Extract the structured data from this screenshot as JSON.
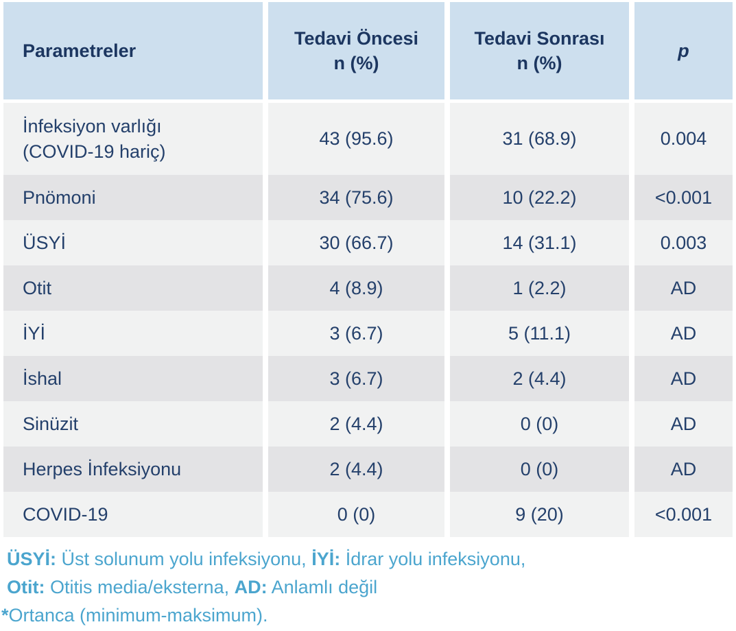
{
  "chart_data": {
    "type": "table",
    "title": "",
    "columns": [
      "Parametreler",
      "Tedavi Öncesi n (%)",
      "Tedavi Sonrası n (%)",
      "p"
    ],
    "rows": [
      [
        "İnfeksiyon varlığı (COVID-19 hariç)",
        "43 (95.6)",
        "31 (68.9)",
        "0.004"
      ],
      [
        "Pnömoni",
        "34 (75.6)",
        "10 (22.2)",
        "<0.001"
      ],
      [
        "ÜSYİ",
        "30 (66.7)",
        "14 (31.1)",
        "0.003"
      ],
      [
        "Otit",
        "4 (8.9)",
        "1 (2.2)",
        "AD"
      ],
      [
        "İYİ",
        "3 (6.7)",
        "5 (11.1)",
        "AD"
      ],
      [
        "İshal",
        "3 (6.7)",
        "2 (4.4)",
        "AD"
      ],
      [
        "Sinüzit",
        "2 (4.4)",
        "0 (0)",
        "AD"
      ],
      [
        "Herpes İnfeksiyonu",
        "2 (4.4)",
        "0 (0)",
        "AD"
      ],
      [
        "COVID-19",
        "0 (0)",
        "9 (20)",
        "<0.001"
      ]
    ],
    "footnotes": [
      "ÜSYİ: Üst solunum yolu infeksiyonu, İYİ: İdrar yolu infeksiyonu,",
      "Otit: Otitis media/eksterna, AD: Anlamlı değil",
      "*Ortanca (minimum-maksimum)."
    ]
  },
  "table": {
    "header": {
      "param": "Parametreler",
      "pre": "Tedavi Öncesi\nn (%)",
      "post": "Tedavi Sonrası\nn (%)",
      "p": "p"
    },
    "rows": [
      {
        "label": "İnfeksiyon varlığı\n(COVID-19 hariç)",
        "pre": "43 (95.6)",
        "post": "31 (68.9)",
        "p": "0.004"
      },
      {
        "label": "Pnömoni",
        "pre": "34 (75.6)",
        "post": "10 (22.2)",
        "p": "<0.001"
      },
      {
        "label": "ÜSYİ",
        "pre": "30 (66.7)",
        "post": "14 (31.1)",
        "p": "0.003"
      },
      {
        "label": "Otit",
        "pre": "4 (8.9)",
        "post": "1 (2.2)",
        "p": "AD"
      },
      {
        "label": "İYİ",
        "pre": "3 (6.7)",
        "post": "5 (11.1)",
        "p": "AD"
      },
      {
        "label": "İshal",
        "pre": "3 (6.7)",
        "post": "2 (4.4)",
        "p": "AD"
      },
      {
        "label": "Sinüzit",
        "pre": "2 (4.4)",
        "post": "0 (0)",
        "p": "AD"
      },
      {
        "label": "Herpes İnfeksiyonu",
        "pre": "2 (4.4)",
        "post": "0 (0)",
        "p": "AD"
      },
      {
        "label": "COVID-19",
        "pre": "0 (0)",
        "post": "9 (20)",
        "p": "<0.001"
      }
    ]
  },
  "footnotes": {
    "line1": [
      {
        "text": "ÜSYİ:",
        "bold": true
      },
      {
        "text": " Üst solunum yolu infeksiyonu, ",
        "bold": false
      },
      {
        "text": "İYİ:",
        "bold": true
      },
      {
        "text": " İdrar yolu infeksiyonu,",
        "bold": false
      }
    ],
    "line2": [
      {
        "text": "Otit:",
        "bold": true
      },
      {
        "text": " Otitis media/eksterna, ",
        "bold": false
      },
      {
        "text": "AD:",
        "bold": true
      },
      {
        "text": " Anlamlı değil",
        "bold": false
      }
    ],
    "line3": [
      {
        "text": "*",
        "bold": true
      },
      {
        "text": "Ortanca (minimum-maksimum).",
        "bold": false
      }
    ]
  },
  "colors": {
    "header_background": "#cddfee",
    "header_text": "#1c3660",
    "body_text": "#24406b",
    "row_light": "#f1f2f2",
    "row_dark": "#e3e3e5",
    "footnote_text": "#4ba5ce",
    "page_background": "#ffffff"
  }
}
